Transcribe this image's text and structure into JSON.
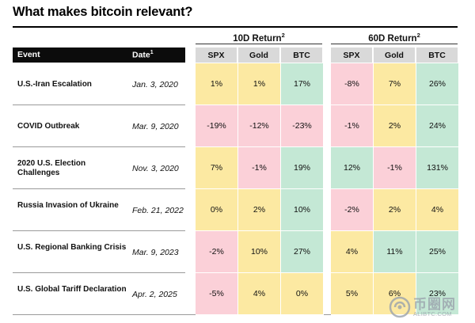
{
  "title": "What makes bitcoin relevant?",
  "headers": {
    "event": "Event",
    "date": "Date",
    "date_note": "1",
    "group_10d": "10D Return",
    "group_10d_note": "2",
    "group_60d": "60D Return",
    "group_60d_note": "2",
    "assets": [
      "SPX",
      "Gold",
      "BTC"
    ]
  },
  "chart_data": {
    "type": "table",
    "title": "What makes bitcoin relevant?",
    "column_groups": [
      {
        "name": "10D Return",
        "columns": [
          "SPX",
          "Gold",
          "BTC"
        ]
      },
      {
        "name": "60D Return",
        "columns": [
          "SPX",
          "Gold",
          "BTC"
        ]
      }
    ],
    "rows": [
      {
        "event": "U.S.-Iran Escalation",
        "date": "Jan. 3, 2020",
        "r10": [
          "1%",
          "1%",
          "17%"
        ],
        "r60": [
          "-8%",
          "7%",
          "26%"
        ],
        "c10": [
          "yellow",
          "yellow",
          "green"
        ],
        "c60": [
          "pink",
          "yellow",
          "green"
        ]
      },
      {
        "event": "COVID Outbreak",
        "date": "Mar. 9, 2020",
        "r10": [
          "-19%",
          "-12%",
          "-23%"
        ],
        "r60": [
          "-1%",
          "2%",
          "24%"
        ],
        "c10": [
          "pink",
          "pink",
          "pink"
        ],
        "c60": [
          "pink",
          "yellow",
          "green"
        ]
      },
      {
        "event": "2020 U.S. Election Challenges",
        "date": "Nov. 3, 2020",
        "r10": [
          "7%",
          "-1%",
          "19%"
        ],
        "r60": [
          "12%",
          "-1%",
          "131%"
        ],
        "c10": [
          "yellow",
          "pink",
          "green"
        ],
        "c60": [
          "green",
          "pink",
          "green"
        ]
      },
      {
        "event": "Russia Invasion of Ukraine",
        "date": "Feb. 21, 2022",
        "r10": [
          "0%",
          "2%",
          "10%"
        ],
        "r60": [
          "-2%",
          "2%",
          "4%"
        ],
        "c10": [
          "yellow",
          "yellow",
          "green"
        ],
        "c60": [
          "pink",
          "yellow",
          "yellow"
        ]
      },
      {
        "event": "U.S. Regional Banking Crisis",
        "date": "Mar. 9, 2023",
        "r10": [
          "-2%",
          "10%",
          "27%"
        ],
        "r60": [
          "4%",
          "11%",
          "25%"
        ],
        "c10": [
          "pink",
          "yellow",
          "green"
        ],
        "c60": [
          "yellow",
          "green",
          "green"
        ]
      },
      {
        "event": "U.S. Global Tariff Declaration",
        "date": "Apr. 2, 2025",
        "r10": [
          "-5%",
          "4%",
          "0%"
        ],
        "r60": [
          "5%",
          "6%",
          "23%"
        ],
        "c10": [
          "pink",
          "yellow",
          "yellow"
        ],
        "c60": [
          "yellow",
          "yellow",
          "green"
        ]
      }
    ]
  },
  "colors": {
    "yellow": "#fce9a2",
    "pink": "#fbd0d8",
    "green": "#c4e8d5",
    "header_bar": "#0c0c0c",
    "column_header": "#d9d9d9"
  },
  "watermark": {
    "brand": "币圈网",
    "url": "ALIBTC.COM",
    "icon": "swirl-logo-icon"
  }
}
